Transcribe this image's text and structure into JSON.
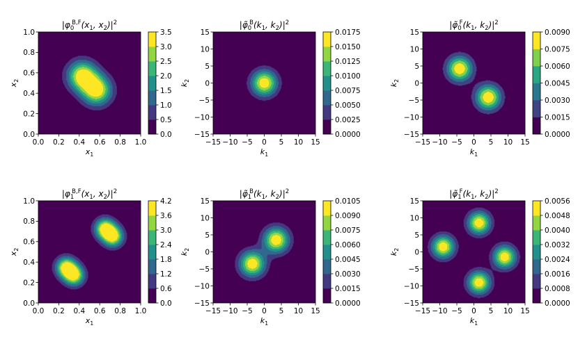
{
  "chart_data": [
    {
      "type": "contour",
      "title_parts": [
        "|φ",
        "0",
        "B,F",
        "(x",
        "1",
        ", x",
        "2",
        ")|",
        "2"
      ],
      "xlabel": "x",
      "xlabel_sub": "1",
      "ylabel": "x",
      "ylabel_sub": "2",
      "xlim": [
        0,
        1
      ],
      "ylim": [
        0,
        1
      ],
      "xticks": [
        "0.0",
        "0.2",
        "0.4",
        "0.6",
        "0.8",
        "1.0"
      ],
      "yticks": [
        "0.0",
        "0.2",
        "0.4",
        "0.6",
        "0.8",
        "1.0"
      ],
      "peaks": [
        {
          "x": 0.43,
          "y": 0.57,
          "sx": 0.1,
          "sy": 0.1,
          "a": 3.5
        },
        {
          "x": 0.57,
          "y": 0.43,
          "sx": 0.1,
          "sy": 0.1,
          "a": 3.5
        }
      ],
      "colorbar": {
        "min": 0,
        "max": 3.5,
        "ticks": [
          "0.0",
          "0.5",
          "1.0",
          "1.5",
          "2.0",
          "2.5",
          "3.0",
          "3.5"
        ]
      }
    },
    {
      "type": "contour",
      "title_parts": [
        "|φ̃",
        "0",
        "B",
        "(k",
        "1",
        ", k",
        "2",
        ")|",
        "2"
      ],
      "xlabel": "k",
      "xlabel_sub": "1",
      "ylabel": "k",
      "ylabel_sub": "2",
      "xlim": [
        -15,
        15
      ],
      "ylim": [
        -15,
        15
      ],
      "xticks": [
        "−15",
        "−10",
        "−5",
        "0",
        "5",
        "10",
        "15"
      ],
      "yticks": [
        "−15",
        "−10",
        "−5",
        "0",
        "5",
        "10",
        "15"
      ],
      "peaks": [
        {
          "x": 0,
          "y": 0,
          "sx": 2.6,
          "sy": 2.6,
          "a": 0.0175
        }
      ],
      "colorbar": {
        "min": 0,
        "max": 0.0175,
        "ticks": [
          "0.0000",
          "0.0025",
          "0.0050",
          "0.0075",
          "0.0100",
          "0.0125",
          "0.0150",
          "0.0175"
        ]
      }
    },
    {
      "type": "contour",
      "title_parts": [
        "|φ̃",
        "0",
        "F",
        "(k",
        "1",
        ", k",
        "2",
        ")|",
        "2"
      ],
      "xlabel": "k",
      "xlabel_sub": "1",
      "ylabel": "k",
      "ylabel_sub": "2",
      "xlim": [
        -15,
        15
      ],
      "ylim": [
        -15,
        15
      ],
      "xticks": [
        "−15",
        "−10",
        "−5",
        "0",
        "5",
        "10",
        "15"
      ],
      "yticks": [
        "−15",
        "−10",
        "−5",
        "0",
        "5",
        "10",
        "15"
      ],
      "peaks": [
        {
          "x": -4.2,
          "y": 4.2,
          "sx": 2.6,
          "sy": 2.6,
          "a": 0.009
        },
        {
          "x": 4.2,
          "y": -4.2,
          "sx": 2.6,
          "sy": 2.6,
          "a": 0.009
        }
      ],
      "colorbar": {
        "min": 0,
        "max": 0.009,
        "ticks": [
          "0.0000",
          "0.0015",
          "0.0030",
          "0.0045",
          "0.0060",
          "0.0075",
          "0.0090"
        ]
      }
    },
    {
      "type": "contour",
      "title_parts": [
        "|φ",
        "1",
        "B,F",
        "(x",
        "1",
        ", x",
        "2",
        ")|",
        "2"
      ],
      "xlabel": "x",
      "xlabel_sub": "1",
      "ylabel": "x",
      "ylabel_sub": "2",
      "xlim": [
        0,
        1
      ],
      "ylim": [
        0,
        1
      ],
      "xticks": [
        "0.0",
        "0.2",
        "0.4",
        "0.6",
        "0.8",
        "1.0"
      ],
      "yticks": [
        "0.0",
        "0.2",
        "0.4",
        "0.6",
        "0.8",
        "1.0"
      ],
      "peaks": [
        {
          "x": 0.27,
          "y": 0.35,
          "sx": 0.07,
          "sy": 0.07,
          "a": 4.0
        },
        {
          "x": 0.35,
          "y": 0.27,
          "sx": 0.07,
          "sy": 0.07,
          "a": 4.0
        },
        {
          "x": 0.65,
          "y": 0.73,
          "sx": 0.07,
          "sy": 0.07,
          "a": 4.0
        },
        {
          "x": 0.73,
          "y": 0.65,
          "sx": 0.07,
          "sy": 0.07,
          "a": 4.0
        }
      ],
      "colorbar": {
        "min": 0,
        "max": 4.2,
        "ticks": [
          "0.0",
          "0.6",
          "1.2",
          "1.8",
          "2.4",
          "3.0",
          "3.6",
          "4.2"
        ]
      }
    },
    {
      "type": "contour",
      "title_parts": [
        "|φ̃",
        "1",
        "B",
        "(k",
        "1",
        ", k",
        "2",
        ")|",
        "2"
      ],
      "xlabel": "k",
      "xlabel_sub": "1",
      "ylabel": "k",
      "ylabel_sub": "2",
      "xlim": [
        -15,
        15
      ],
      "ylim": [
        -15,
        15
      ],
      "xticks": [
        "−15",
        "−10",
        "−5",
        "0",
        "5",
        "10",
        "15"
      ],
      "yticks": [
        "−15",
        "−10",
        "−5",
        "0",
        "5",
        "10",
        "15"
      ],
      "peaks": [
        {
          "x": 3.5,
          "y": 3.5,
          "sx": 2.6,
          "sy": 2.6,
          "a": 0.0105
        },
        {
          "x": -3.5,
          "y": -3.5,
          "sx": 2.6,
          "sy": 2.6,
          "a": 0.0105
        }
      ],
      "colorbar": {
        "min": 0,
        "max": 0.0105,
        "ticks": [
          "0.0000",
          "0.0015",
          "0.0030",
          "0.0045",
          "0.0060",
          "0.0075",
          "0.0090",
          "0.0105"
        ]
      }
    },
    {
      "type": "contour",
      "title_parts": [
        "|φ̃",
        "1",
        "F",
        "(k",
        "1",
        ", k",
        "2",
        ")|",
        "2"
      ],
      "xlabel": "k",
      "xlabel_sub": "1",
      "ylabel": "k",
      "ylabel_sub": "2",
      "xlim": [
        -15,
        15
      ],
      "ylim": [
        -15,
        15
      ],
      "xticks": [
        "−15",
        "−10",
        "−5",
        "0",
        "5",
        "10",
        "15"
      ],
      "yticks": [
        "−15",
        "−10",
        "−5",
        "0",
        "5",
        "10",
        "15"
      ],
      "peaks": [
        {
          "x": -9,
          "y": 1.5,
          "sx": 2.3,
          "sy": 2.3,
          "a": 0.0056
        },
        {
          "x": 9,
          "y": -1.5,
          "sx": 2.3,
          "sy": 2.3,
          "a": 0.0056
        },
        {
          "x": 1.5,
          "y": 8.5,
          "sx": 2.3,
          "sy": 2.3,
          "a": 0.0056
        },
        {
          "x": 1.5,
          "y": -9,
          "sx": 2.3,
          "sy": 2.3,
          "a": 0.0056
        }
      ],
      "colorbar": {
        "min": 0,
        "max": 0.0056,
        "ticks": [
          "0.0000",
          "0.0008",
          "0.0016",
          "0.0024",
          "0.0032",
          "0.0040",
          "0.0048",
          "0.0056"
        ]
      }
    }
  ],
  "colors": {
    "viridis": [
      "#440154",
      "#46327e",
      "#365c8d",
      "#277f8e",
      "#1fa187",
      "#4ac16d",
      "#a0da39",
      "#fde725"
    ]
  }
}
